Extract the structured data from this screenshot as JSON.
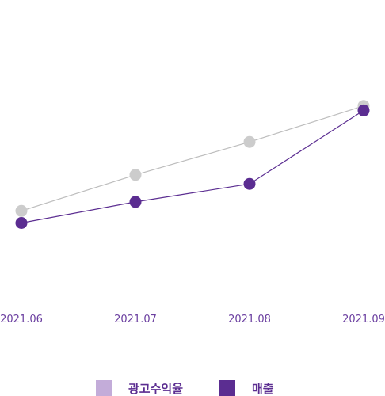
{
  "chart_data": {
    "type": "line",
    "categories": [
      "2021.06",
      "2021.07",
      "2021.08",
      "2021.09"
    ],
    "series": [
      {
        "name": "광고수익율",
        "line_color": "#bdbdbd",
        "marker_color": "#cccccc",
        "legend_color": "#c3acd9",
        "values": [
          30,
          54,
          76,
          100
        ]
      },
      {
        "name": "매출",
        "line_color": "#5b2d91",
        "marker_color": "#5b2d91",
        "legend_color": "#5b2d91",
        "values": [
          22,
          36,
          48,
          97
        ]
      }
    ],
    "ylim": [
      -30,
      160
    ],
    "grid": false,
    "legend_position": "bottom"
  }
}
